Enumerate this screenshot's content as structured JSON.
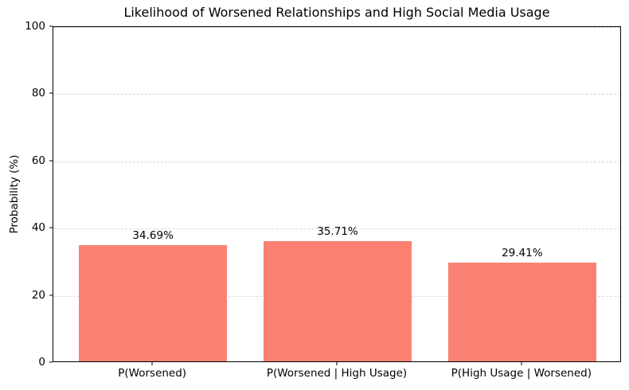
{
  "chart_data": {
    "type": "bar",
    "title": "Likelihood of Worsened Relationships and High Social Media Usage",
    "xlabel": "",
    "ylabel": "Probability (%)",
    "categories": [
      "P(Worsened)",
      "P(Worsened | High Usage)",
      "P(High Usage | Worsened)"
    ],
    "values": [
      34.69,
      35.71,
      29.41
    ],
    "value_labels": [
      "34.69%",
      "35.71%",
      "29.41%"
    ],
    "yticks": [
      0,
      20,
      40,
      60,
      80,
      100
    ],
    "ylim": [
      0,
      100
    ],
    "xlim": [
      -0.54,
      2.54
    ],
    "bar_width": 0.8,
    "bar_color": "#FA8072",
    "grid": {
      "axis": "y",
      "style": "dashed",
      "color": "#d9d9d9"
    },
    "legend": "none",
    "background_color": "#ffffff",
    "frame": "all-four-spines"
  }
}
